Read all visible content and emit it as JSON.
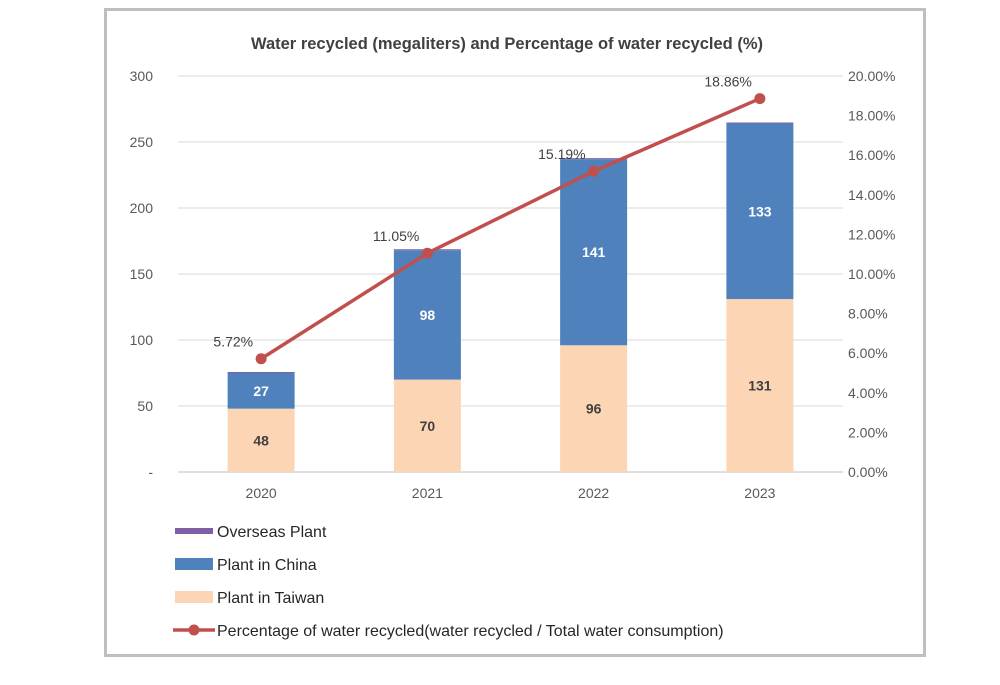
{
  "chart_data": {
    "type": "bar",
    "title": "Water recycled (megaliters) and Percentage of water recycled (%)",
    "categories": [
      "2020",
      "2021",
      "2022",
      "2023"
    ],
    "series": [
      {
        "name": "Overseas Plant",
        "kind": "bar",
        "color": "#7f5fa8",
        "values": [
          0,
          0,
          0,
          0
        ]
      },
      {
        "name": "Plant in China",
        "kind": "bar",
        "color": "#4f81bd",
        "values": [
          27,
          98,
          141,
          133
        ]
      },
      {
        "name": "Plant in Taiwan",
        "kind": "bar",
        "color": "#fcd5b5",
        "values": [
          48,
          70,
          96,
          131
        ]
      },
      {
        "name": "Percentage of water recycled(water recycled / Total water consumption)",
        "kind": "line",
        "axis": "right",
        "color": "#c0504d",
        "values": [
          5.72,
          11.05,
          15.19,
          18.86
        ],
        "labels": [
          "5.72%",
          "11.05%",
          "15.19%",
          "18.86%"
        ]
      }
    ],
    "y_left": {
      "ylim": [
        0,
        300
      ],
      "ticks": [
        "-",
        "50",
        "100",
        "150",
        "200",
        "250",
        "300"
      ]
    },
    "y_right": {
      "ylim": [
        0,
        20
      ],
      "ticks": [
        "0.00%",
        "2.00%",
        "4.00%",
        "6.00%",
        "8.00%",
        "10.00%",
        "12.00%",
        "14.00%",
        "16.00%",
        "18.00%",
        "20.00%"
      ]
    },
    "grid": true,
    "legend_position": "bottom-left"
  }
}
